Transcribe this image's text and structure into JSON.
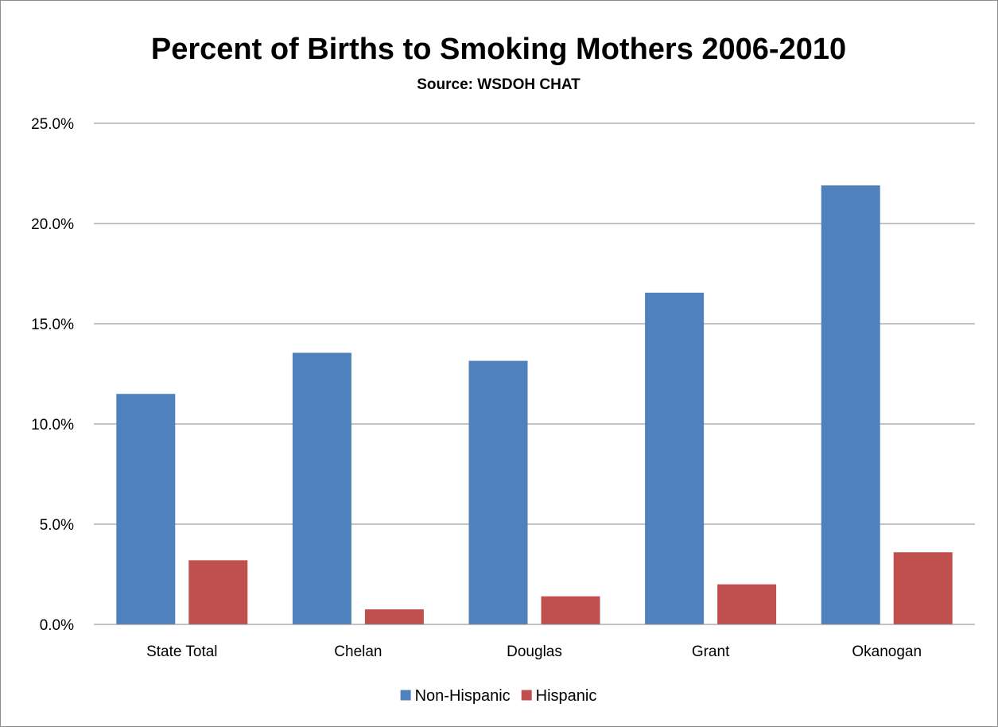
{
  "chart_data": {
    "type": "bar",
    "title": "Percent of Births to Smoking Mothers 2006-2010",
    "subtitle": "Source: WSDOH CHAT",
    "xlabel": "",
    "ylabel": "",
    "categories": [
      "State Total",
      "Chelan",
      "Douglas",
      "Grant",
      "Okanogan"
    ],
    "series": [
      {
        "name": "Non-Hispanic",
        "color": "#4f81bd",
        "values": [
          11.5,
          13.55,
          13.15,
          16.55,
          21.9
        ]
      },
      {
        "name": "Hispanic",
        "color": "#c0504d",
        "values": [
          3.2,
          0.75,
          1.4,
          2.0,
          3.6
        ]
      }
    ],
    "ylim": [
      0,
      25
    ],
    "yticks": [
      0,
      5,
      10,
      15,
      20,
      25
    ],
    "ytick_labels": [
      "0.0%",
      "5.0%",
      "10.0%",
      "15.0%",
      "20.0%",
      "25.0%"
    ],
    "grid": true,
    "legend_position": "bottom"
  }
}
